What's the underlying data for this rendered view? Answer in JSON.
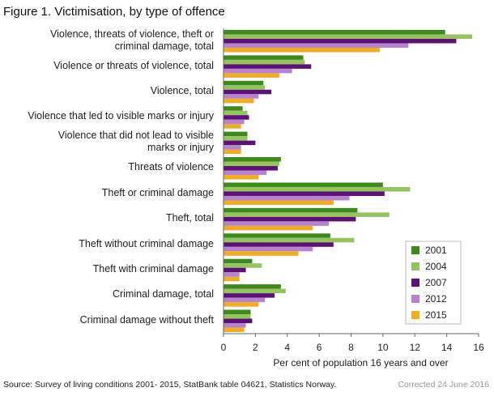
{
  "chart_data": {
    "type": "barh",
    "title": "Figure 1. Victimisation, by type of offence",
    "xlabel": "Per cent of population 16 years and over",
    "source": "Source: Survey of living conditions 2001- 2015, StatBank table 04621, Statistics Norway.",
    "note": "Corrected 24 June 2016",
    "categories": [
      "Violence,  threats of violence, theft or\ncriminal damage, total",
      "Violence or threats of violence, total",
      "Violence, total",
      "Violence that led to visible marks or injury",
      "Violence  that did not lead to visible\nmarks or injury",
      "Threats of violence",
      "Theft or criminal damage",
      "Theft, total",
      "Theft without criminal damage",
      "Theft with criminal damage",
      "Criminal damage, total",
      "Criminal damage without theft"
    ],
    "series": [
      {
        "name": "2001",
        "color": "#3d8a1c",
        "values": [
          13.9,
          5.0,
          2.5,
          1.2,
          1.5,
          3.6,
          10.0,
          8.4,
          6.7,
          1.8,
          3.6,
          1.7
        ]
      },
      {
        "name": "2004",
        "color": "#95c45e",
        "values": [
          15.6,
          5.1,
          2.6,
          1.5,
          1.5,
          3.5,
          11.7,
          10.4,
          8.2,
          2.4,
          3.9,
          1.7
        ]
      },
      {
        "name": "2007",
        "color": "#5e0f78",
        "values": [
          14.6,
          5.5,
          3.0,
          1.6,
          2.0,
          3.4,
          10.1,
          8.3,
          6.9,
          1.4,
          3.2,
          1.8
        ]
      },
      {
        "name": "2012",
        "color": "#b584cc",
        "values": [
          11.6,
          4.3,
          2.2,
          1.3,
          1.1,
          2.7,
          7.9,
          6.6,
          5.6,
          1.0,
          2.6,
          1.4
        ]
      },
      {
        "name": "2015",
        "color": "#f2ac1f",
        "values": [
          9.8,
          3.5,
          1.9,
          1.1,
          1.1,
          2.2,
          6.9,
          5.6,
          4.7,
          1.0,
          2.2,
          1.3
        ]
      }
    ],
    "xlim": [
      0,
      16
    ],
    "xticks": [
      0,
      2,
      4,
      6,
      8,
      10,
      12,
      14,
      16
    ],
    "grid": false,
    "legend": "lower right"
  }
}
